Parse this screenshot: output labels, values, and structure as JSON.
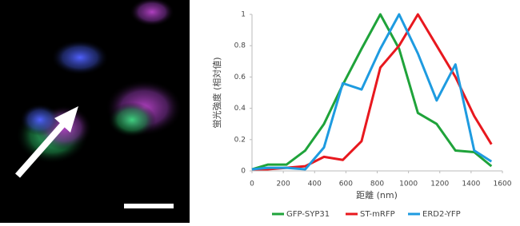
{
  "chart_data": {
    "type": "line",
    "y_label": "蛍光強度 (相対値)",
    "x_label": "距離 (nm)",
    "x": [
      0,
      100,
      220,
      340,
      460,
      580,
      700,
      820,
      940,
      1060,
      1180,
      1300,
      1420,
      1530
    ],
    "series": [
      {
        "name": "GFP-SYP31",
        "color": "#1fa33a",
        "values": [
          0.01,
          0.04,
          0.04,
          0.13,
          0.3,
          0.55,
          0.78,
          1.0,
          0.78,
          0.37,
          0.3,
          0.13,
          0.12,
          0.03
        ]
      },
      {
        "name": "ST-mRFP",
        "color": "#e8181e",
        "values": [
          0.01,
          0.01,
          0.02,
          0.03,
          0.09,
          0.07,
          0.19,
          0.66,
          0.8,
          1.0,
          0.8,
          0.6,
          0.35,
          0.17
        ]
      },
      {
        "name": "ERD2-YFP",
        "color": "#1e9be0",
        "values": [
          0.01,
          0.02,
          0.02,
          0.01,
          0.15,
          0.56,
          0.52,
          0.78,
          1.0,
          0.75,
          0.45,
          0.68,
          0.13,
          0.06
        ]
      }
    ],
    "xlim": [
      0,
      1600
    ],
    "xticks": [
      0,
      200,
      400,
      600,
      800,
      1000,
      1200,
      1400,
      1600
    ],
    "ylim": [
      0,
      1
    ],
    "yticks": [
      0,
      0.2,
      0.4,
      0.6,
      0.8,
      1
    ],
    "legend": "bottom"
  }
}
